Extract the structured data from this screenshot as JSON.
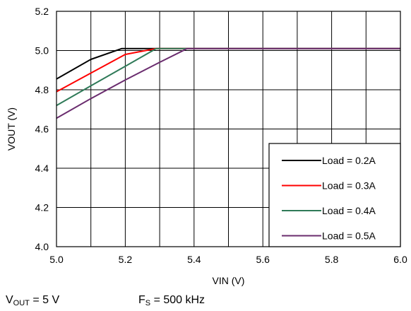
{
  "chart_data": {
    "type": "line",
    "title": "",
    "xlabel": "VIN (V)",
    "ylabel": "VOUT (V)",
    "xlim": [
      5.0,
      6.0
    ],
    "ylim": [
      4.0,
      5.2
    ],
    "x_ticks": [
      "5.0",
      "5.2",
      "5.4",
      "5.6",
      "5.8",
      "6.0"
    ],
    "y_ticks": [
      "4.0",
      "4.2",
      "4.4",
      "4.6",
      "4.8",
      "5.0",
      "5.2"
    ],
    "x_grid_step": 0.1,
    "y_grid_step": 0.2,
    "grid": true,
    "legend_position": "bottom-right",
    "series": [
      {
        "name": "Load = 0.2A",
        "color": "#000000",
        "x": [
          5.0,
          5.1,
          5.19,
          5.3,
          5.4,
          5.5,
          5.6,
          5.7,
          5.8,
          5.9,
          6.0
        ],
        "y": [
          4.855,
          4.955,
          5.01,
          5.01,
          5.01,
          5.01,
          5.01,
          5.01,
          5.01,
          5.01,
          5.01
        ]
      },
      {
        "name": "Load = 0.3A",
        "color": "#ff0000",
        "x": [
          5.0,
          5.1,
          5.2,
          5.29,
          5.4,
          5.5,
          5.6,
          5.7,
          5.8,
          5.9,
          6.0
        ],
        "y": [
          4.79,
          4.885,
          4.98,
          5.01,
          5.01,
          5.01,
          5.01,
          5.01,
          5.01,
          5.01,
          5.01
        ]
      },
      {
        "name": "Load = 0.4A",
        "color": "#2f7a58",
        "x": [
          5.0,
          5.1,
          5.2,
          5.29,
          5.4,
          5.5,
          5.6,
          5.7,
          5.8,
          5.9,
          6.0
        ],
        "y": [
          4.72,
          4.82,
          4.92,
          5.01,
          5.01,
          5.01,
          5.01,
          5.01,
          5.01,
          5.01,
          5.01
        ]
      },
      {
        "name": "Load = 0.5A",
        "color": "#6a2c6e",
        "x": [
          5.0,
          5.1,
          5.2,
          5.3,
          5.38,
          5.5,
          5.6,
          5.7,
          5.8,
          5.9,
          6.0
        ],
        "y": [
          4.655,
          4.755,
          4.85,
          4.94,
          5.01,
          5.01,
          5.01,
          5.01,
          5.01,
          5.01,
          5.01
        ]
      }
    ]
  },
  "notes": {
    "vout_main": "V",
    "vout_sub": "OUT",
    "vout_rest": " = 5 V",
    "fs_main": "F",
    "fs_sub": "S",
    "fs_rest": " = 500 kHz"
  }
}
